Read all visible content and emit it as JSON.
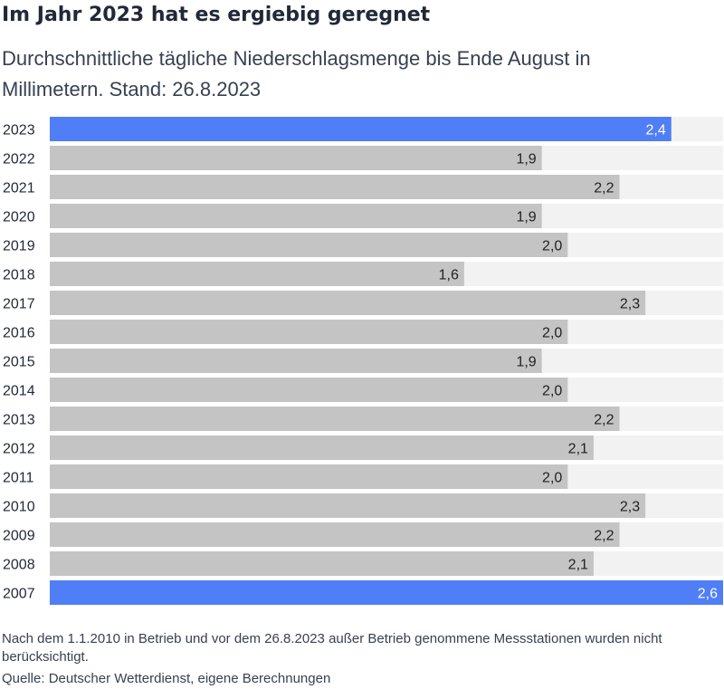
{
  "title": "Im Jahr 2023 hat es ergiebig geregnet",
  "subtitle": "Durchschnittliche tägliche Niederschlagsmenge bis Ende August in Millimetern. Stand: 26.8.2023",
  "footnote": "Nach dem 1.1.2010 in Betrieb und vor dem 26.8.2023 außer Betrieb genommene Messstationen wurden nicht berücksichtigt.",
  "source": "Quelle: Deutscher Wetterdienst, eigene Berechnungen",
  "colors": {
    "highlight": "#4f7ef7",
    "bar": "#c4c4c4",
    "track": "#f2f2f2",
    "highlight_label": "#ffffff",
    "bar_label": "#222222",
    "category_label": "#1f2937"
  },
  "chart_data": {
    "type": "bar",
    "orientation": "horizontal",
    "title": "Im Jahr 2023 hat es ergiebig geregnet",
    "subtitle": "Durchschnittliche tägliche Niederschlagsmenge bis Ende August in Millimetern. Stand: 26.8.2023",
    "categories": [
      "2023",
      "2022",
      "2021",
      "2020",
      "2019",
      "2018",
      "2017",
      "2016",
      "2015",
      "2014",
      "2013",
      "2012",
      "2011",
      "2010",
      "2009",
      "2008",
      "2007"
    ],
    "values": [
      2.4,
      1.9,
      2.2,
      1.9,
      2.0,
      1.6,
      2.3,
      2.0,
      1.9,
      2.0,
      2.2,
      2.1,
      2.0,
      2.3,
      2.2,
      2.1,
      2.6
    ],
    "value_labels": [
      "2,4",
      "1,9",
      "2,2",
      "1,9",
      "2,0",
      "1,6",
      "2,3",
      "2,0",
      "1,9",
      "2,0",
      "2,2",
      "2,1",
      "2,0",
      "2,3",
      "2,2",
      "2,1",
      "2,6"
    ],
    "highlighted": [
      "2023",
      "2007"
    ],
    "xlim": [
      0,
      2.6
    ],
    "grid": false,
    "legend": "none"
  }
}
